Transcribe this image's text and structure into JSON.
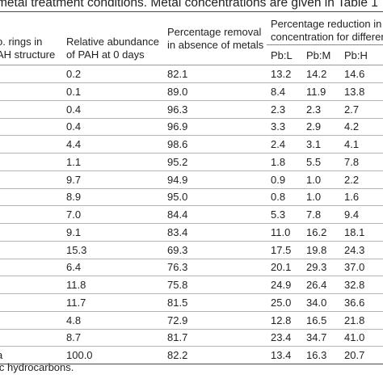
{
  "caption": "metal treatment conditions. Metal concentrations are given in Table 1",
  "headers": {
    "rings_line1": "o. rings in",
    "rings_line2": "AH structure",
    "abundance_line1": "Relative abundance",
    "abundance_line2": "of PAH at 0 days",
    "removal_line1": "Percentage removal",
    "removal_line2": "in absence of metals",
    "reduction_line1": "Percentage reduction in e",
    "reduction_line2": "concentration for differen",
    "pb_l": "Pb:L",
    "pb_m": "Pb:M",
    "pb_h": "Pb:H"
  },
  "rows": [
    {
      "name": "",
      "abundance": "0.2",
      "removal": "82.1",
      "pb_l": "13.2",
      "pb_m": "14.2",
      "pb_h": "14.6"
    },
    {
      "name": "",
      "abundance": "0.1",
      "removal": "89.0",
      "pb_l": "8.4",
      "pb_m": "11.9",
      "pb_h": "13.8"
    },
    {
      "name": "",
      "abundance": "0.4",
      "removal": "96.3",
      "pb_l": "2.3",
      "pb_m": "2.3",
      "pb_h": "2.7"
    },
    {
      "name": "",
      "abundance": "0.4",
      "removal": "96.9",
      "pb_l": "3.3",
      "pb_m": "2.9",
      "pb_h": "4.2"
    },
    {
      "name": "",
      "abundance": "4.4",
      "removal": "98.6",
      "pb_l": "2.4",
      "pb_m": "3.1",
      "pb_h": "4.1"
    },
    {
      "name": "",
      "abundance": "1.1",
      "removal": "95.2",
      "pb_l": "1.8",
      "pb_m": "5.5",
      "pb_h": "7.8"
    },
    {
      "name": "",
      "abundance": "9.7",
      "removal": "94.9",
      "pb_l": "0.9",
      "pb_m": "1.0",
      "pb_h": "2.2"
    },
    {
      "name": "",
      "abundance": "8.9",
      "removal": "95.0",
      "pb_l": "0.8",
      "pb_m": "1.0",
      "pb_h": "1.6"
    },
    {
      "name": "",
      "abundance": "7.0",
      "removal": "84.4",
      "pb_l": "5.3",
      "pb_m": "7.8",
      "pb_h": "9.4"
    },
    {
      "name": "",
      "abundance": "9.1",
      "removal": "83.4",
      "pb_l": "11.0",
      "pb_m": "16.2",
      "pb_h": "18.1"
    },
    {
      "name": "",
      "abundance": "15.3",
      "removal": "69.3",
      "pb_l": "17.5",
      "pb_m": "19.8",
      "pb_h": "24.3"
    },
    {
      "name": "",
      "abundance": "6.4",
      "removal": "76.3",
      "pb_l": "20.1",
      "pb_m": "29.3",
      "pb_h": "37.0"
    },
    {
      "name": "",
      "abundance": "11.8",
      "removal": "75.8",
      "pb_l": "24.9",
      "pb_m": "26.4",
      "pb_h": "32.8"
    },
    {
      "name": "",
      "abundance": "11.7",
      "removal": "81.5",
      "pb_l": "25.0",
      "pb_m": "34.0",
      "pb_h": "36.6"
    },
    {
      "name": "",
      "abundance": "4.8",
      "removal": "72.9",
      "pb_l": "12.8",
      "pb_m": "16.5",
      "pb_h": "21.8"
    },
    {
      "name": "",
      "abundance": "8.7",
      "removal": "81.7",
      "pb_l": "23.4",
      "pb_m": "34.7",
      "pb_h": "41.0"
    },
    {
      "name": "a",
      "abundance": "100.0",
      "removal": "82.2",
      "pb_l": "13.4",
      "pb_m": "16.3",
      "pb_h": "20.7"
    }
  ],
  "footnote": "ic hydrocarbons."
}
